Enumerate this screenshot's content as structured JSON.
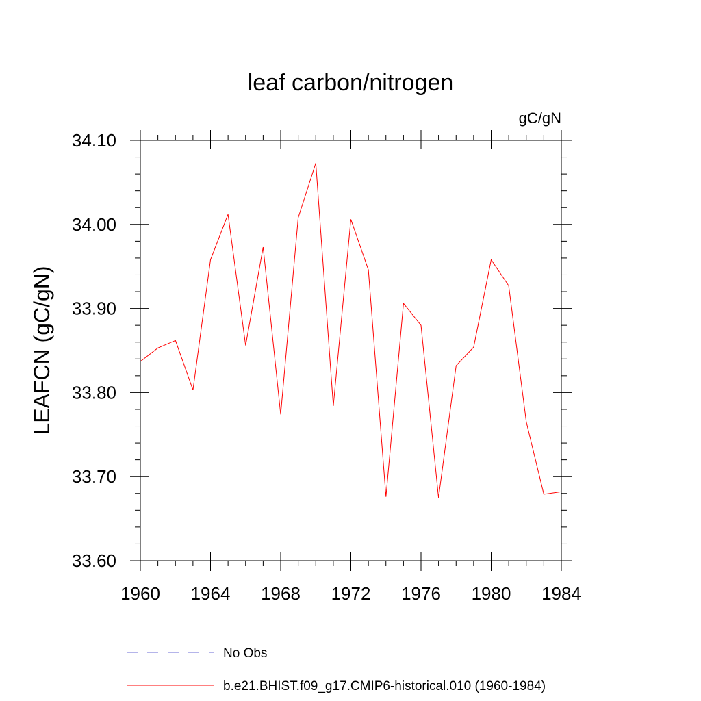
{
  "chart_data": {
    "type": "line",
    "title": "leaf carbon/nitrogen",
    "units_label": "gC/gN",
    "ylabel": "LEAFCN  (gC/gN)",
    "xlabel": "",
    "xlim": [
      1960,
      1984
    ],
    "ylim": [
      33.6,
      34.1
    ],
    "x_ticks": [
      1960,
      1964,
      1968,
      1972,
      1976,
      1980,
      1984
    ],
    "x_tick_labels": [
      "1960",
      "1964",
      "1968",
      "1972",
      "1976",
      "1980",
      "1984"
    ],
    "y_ticks": [
      33.6,
      33.7,
      33.8,
      33.9,
      34.0,
      34.1
    ],
    "y_tick_labels": [
      "33.60",
      "33.70",
      "33.80",
      "33.90",
      "34.00",
      "34.10"
    ],
    "grid": false,
    "legend_position": "bottom",
    "series": [
      {
        "name": "No Obs",
        "color": "#6b6bd6",
        "dashed": true,
        "x": [],
        "y": []
      },
      {
        "name": "b.e21.BHIST.f09_g17.CMIP6-historical.010 (1960-1984)",
        "color": "#ff0000",
        "dashed": false,
        "x": [
          1960,
          1961,
          1962,
          1963,
          1964,
          1965,
          1966,
          1967,
          1968,
          1969,
          1970,
          1971,
          1972,
          1973,
          1974,
          1975,
          1976,
          1977,
          1978,
          1979,
          1980,
          1981,
          1982,
          1983,
          1984
        ],
        "y": [
          33.837,
          33.853,
          33.862,
          33.803,
          33.958,
          34.012,
          33.856,
          33.973,
          33.774,
          34.008,
          34.073,
          33.784,
          34.006,
          33.946,
          33.676,
          33.906,
          33.88,
          33.675,
          33.832,
          33.854,
          33.958,
          33.927,
          33.765,
          33.679,
          33.682
        ]
      }
    ]
  }
}
